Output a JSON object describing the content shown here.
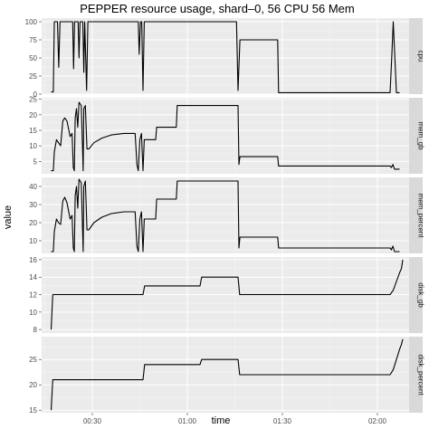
{
  "chart_data": {
    "type": "line",
    "title": "PEPPER resource usage, shard–0, 56 CPU 56 Mem",
    "xlabel": "time",
    "ylabel": "value",
    "x_unit": "minutes since 00:00",
    "x_ticks": [
      {
        "value": 30,
        "label": "00:30"
      },
      {
        "value": 60,
        "label": "01:00"
      },
      {
        "value": 90,
        "label": "01:30"
      },
      {
        "value": 120,
        "label": "02:00"
      }
    ],
    "xlim": [
      14,
      130
    ],
    "grid": true,
    "facets": [
      {
        "name": "cpu",
        "ylim": [
          0,
          105
        ],
        "y_ticks": [
          "0",
          "25",
          "50",
          "75",
          "100"
        ],
        "points": [
          [
            17,
            3
          ],
          [
            17.7,
            3
          ],
          [
            18,
            100
          ],
          [
            19,
            100
          ],
          [
            19.4,
            37
          ],
          [
            19.8,
            100
          ],
          [
            23.8,
            100
          ],
          [
            24.1,
            35
          ],
          [
            24.4,
            100
          ],
          [
            25.5,
            100
          ],
          [
            25.8,
            50
          ],
          [
            26.1,
            100
          ],
          [
            27,
            100
          ],
          [
            27.3,
            30
          ],
          [
            27.6,
            100
          ],
          [
            28.2,
            5
          ],
          [
            28.6,
            100
          ],
          [
            44.5,
            100
          ],
          [
            44.8,
            55
          ],
          [
            45.2,
            100
          ],
          [
            45.6,
            100
          ],
          [
            46,
            5
          ],
          [
            46.4,
            100
          ],
          [
            75.5,
            100
          ],
          [
            76,
            5
          ],
          [
            76.6,
            75
          ],
          [
            88.5,
            75
          ],
          [
            88.8,
            2
          ],
          [
            124,
            2
          ],
          [
            124.5,
            50
          ],
          [
            125,
            100
          ],
          [
            125.5,
            50
          ],
          [
            126,
            2
          ],
          [
            127,
            2
          ]
        ]
      },
      {
        "name": "mem_gb",
        "ylim": [
          1,
          25.5
        ],
        "y_ticks": [
          "5",
          "10",
          "15",
          "20",
          "25"
        ],
        "points": [
          [
            17,
            2
          ],
          [
            17.7,
            2
          ],
          [
            18,
            8
          ],
          [
            18.7,
            12
          ],
          [
            19.3,
            11
          ],
          [
            20,
            10
          ],
          [
            20.7,
            18
          ],
          [
            21.3,
            19
          ],
          [
            22,
            18
          ],
          [
            23,
            13
          ],
          [
            23.6,
            14
          ],
          [
            24,
            3
          ],
          [
            24.3,
            2
          ],
          [
            24.6,
            19
          ],
          [
            25,
            22
          ],
          [
            25.4,
            16
          ],
          [
            25.8,
            24
          ],
          [
            26.5,
            23
          ],
          [
            27.1,
            2
          ],
          [
            27.3,
            22
          ],
          [
            27.8,
            23
          ],
          [
            28.3,
            9
          ],
          [
            28.9,
            9
          ],
          [
            30.5,
            11
          ],
          [
            33,
            12.5
          ],
          [
            36,
            13.5
          ],
          [
            40,
            14
          ],
          [
            43.5,
            14
          ],
          [
            44.1,
            4
          ],
          [
            44.5,
            2
          ],
          [
            45,
            12
          ],
          [
            45.5,
            14
          ],
          [
            46,
            2
          ],
          [
            46.4,
            12
          ],
          [
            50,
            12
          ],
          [
            50.3,
            16
          ],
          [
            56.5,
            16
          ],
          [
            56.8,
            23
          ],
          [
            76,
            23
          ],
          [
            76.3,
            4
          ],
          [
            76.6,
            6.5
          ],
          [
            88.5,
            6.5
          ],
          [
            88.8,
            3.5
          ],
          [
            124,
            3.5
          ],
          [
            124.4,
            3
          ],
          [
            124.9,
            4
          ],
          [
            125.4,
            2.5
          ],
          [
            127,
            2.5
          ]
        ]
      },
      {
        "name": "mem_percent",
        "ylim": [
          3,
          45
        ],
        "y_ticks": [
          "10",
          "20",
          "30",
          "40"
        ],
        "points": [
          [
            17,
            4
          ],
          [
            17.7,
            4
          ],
          [
            18,
            15
          ],
          [
            18.7,
            22
          ],
          [
            19.3,
            20
          ],
          [
            20,
            19
          ],
          [
            20.7,
            32
          ],
          [
            21.3,
            34
          ],
          [
            22,
            31
          ],
          [
            23,
            22
          ],
          [
            23.6,
            24
          ],
          [
            24,
            6
          ],
          [
            24.3,
            4
          ],
          [
            24.6,
            35
          ],
          [
            25,
            40
          ],
          [
            25.4,
            28
          ],
          [
            25.8,
            44
          ],
          [
            26.5,
            42
          ],
          [
            27.1,
            4
          ],
          [
            27.3,
            40
          ],
          [
            27.8,
            43
          ],
          [
            28.3,
            16
          ],
          [
            28.9,
            16
          ],
          [
            30.5,
            20
          ],
          [
            33,
            23
          ],
          [
            36,
            25
          ],
          [
            40,
            26
          ],
          [
            43.5,
            26
          ],
          [
            44.1,
            7
          ],
          [
            44.5,
            4
          ],
          [
            45,
            22
          ],
          [
            45.5,
            26
          ],
          [
            46,
            4
          ],
          [
            46.4,
            22
          ],
          [
            50,
            22
          ],
          [
            50.3,
            33
          ],
          [
            56.5,
            33
          ],
          [
            56.8,
            43
          ],
          [
            76,
            43
          ],
          [
            76.3,
            6
          ],
          [
            76.6,
            12
          ],
          [
            88.5,
            12
          ],
          [
            88.8,
            6
          ],
          [
            124,
            6
          ],
          [
            124.4,
            5
          ],
          [
            124.9,
            7
          ],
          [
            125.4,
            4
          ],
          [
            127,
            4
          ]
        ]
      },
      {
        "name": "disk_gb",
        "ylim": [
          7.6,
          16.3
        ],
        "y_ticks": [
          "8",
          "10",
          "12",
          "14",
          "16"
        ],
        "points": [
          [
            17,
            8
          ],
          [
            17.5,
            12
          ],
          [
            46,
            12
          ],
          [
            46.5,
            13
          ],
          [
            64,
            13
          ],
          [
            64.5,
            14
          ],
          [
            76,
            14
          ],
          [
            76.5,
            12
          ],
          [
            124,
            12
          ],
          [
            125,
            12.5
          ],
          [
            126,
            13.5
          ],
          [
            127,
            14.5
          ],
          [
            127.6,
            15
          ],
          [
            128,
            16
          ]
        ]
      },
      {
        "name": "disk_percent",
        "ylim": [
          14.5,
          29.5
        ],
        "y_ticks": [
          "15",
          "20",
          "25"
        ],
        "points": [
          [
            17,
            15
          ],
          [
            17.5,
            21
          ],
          [
            46,
            21
          ],
          [
            46.5,
            24
          ],
          [
            64,
            24
          ],
          [
            64.5,
            25
          ],
          [
            76,
            25
          ],
          [
            76.5,
            22
          ],
          [
            124,
            22
          ],
          [
            125,
            23
          ],
          [
            126,
            25
          ],
          [
            127,
            27
          ],
          [
            127.6,
            28
          ],
          [
            128,
            29
          ]
        ]
      }
    ]
  }
}
